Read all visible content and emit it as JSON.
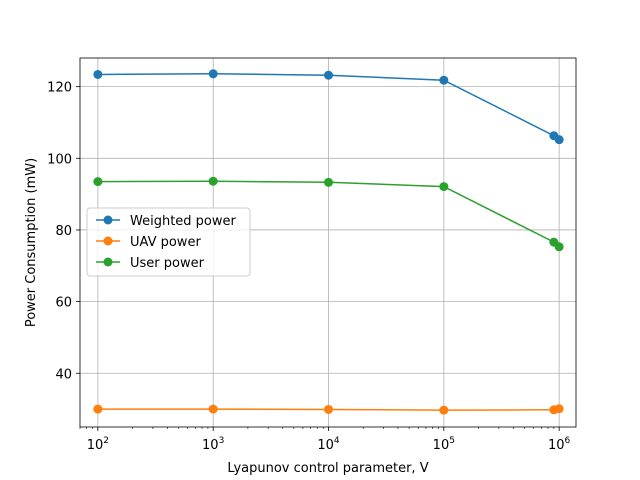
{
  "chart_data": {
    "type": "line",
    "title": "",
    "xlabel": "Lyapunov control parameter, V",
    "ylabel": "Power Consumption (mW)",
    "xscale": "log",
    "xlim": [
      70,
      1400000
    ],
    "ylim": [
      25,
      128
    ],
    "grid": true,
    "legend_position": "center-left",
    "x_ticks": [
      {
        "value": 100,
        "base": "10",
        "exp": "2"
      },
      {
        "value": 1000,
        "base": "10",
        "exp": "3"
      },
      {
        "value": 10000,
        "base": "10",
        "exp": "4"
      },
      {
        "value": 100000,
        "base": "10",
        "exp": "5"
      },
      {
        "value": 1000000,
        "base": "10",
        "exp": "6"
      }
    ],
    "y_ticks": [
      {
        "value": 40,
        "label": "40"
      },
      {
        "value": 60,
        "label": "60"
      },
      {
        "value": 80,
        "label": "80"
      },
      {
        "value": 100,
        "label": "100"
      },
      {
        "value": 120,
        "label": "120"
      }
    ],
    "x": [
      100,
      1000,
      10000,
      100000,
      900000,
      1000000
    ],
    "series": [
      {
        "name": "Weighted power",
        "color": "#1f77b4",
        "values": [
          123.4,
          123.6,
          123.2,
          121.8,
          106.3,
          105.2
        ]
      },
      {
        "name": "UAV power",
        "color": "#ff7f0e",
        "values": [
          30.0,
          30.0,
          29.9,
          29.7,
          29.8,
          30.1
        ]
      },
      {
        "name": "User power",
        "color": "#2ca02c",
        "values": [
          93.5,
          93.6,
          93.3,
          92.1,
          76.6,
          75.3
        ]
      }
    ]
  }
}
